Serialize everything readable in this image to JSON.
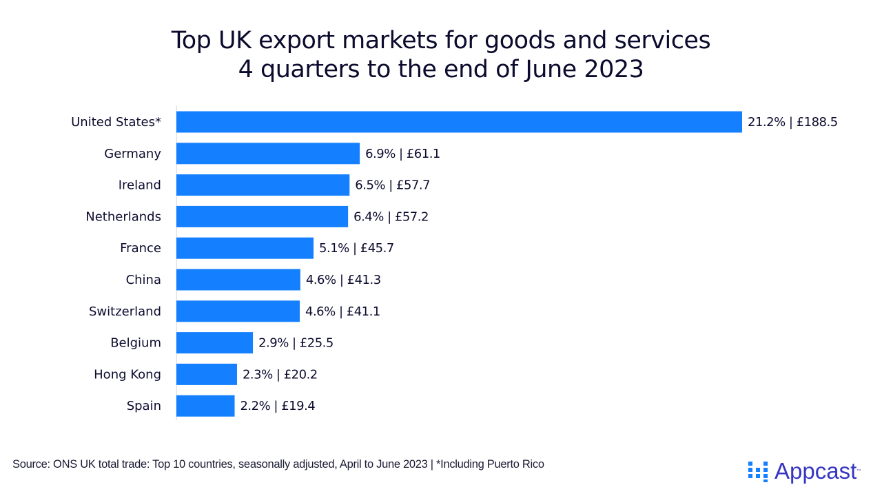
{
  "title": [
    "Top UK export markets for goods and services",
    "4 quarters to the end of June 2023"
  ],
  "footer": "Source: ONS UK total trade: Top 10 countries, seasonally adjusted, April to June 2023 | *Including Puerto Rico",
  "logo": {
    "text": "Appcast",
    "trademark": "™",
    "icon": "dot-grid-icon",
    "color": "#3535c2"
  },
  "colors": {
    "bar": "#1480ff",
    "text": "#0b0b2e"
  },
  "chart_data": {
    "type": "bar",
    "orientation": "horizontal",
    "title": "Top UK export markets for goods and services 4 quarters to the end of June 2023",
    "categories": [
      "United States*",
      "Germany",
      "Ireland",
      "Netherlands",
      "France",
      "China",
      "Switzerland",
      "Belgium",
      "Hong Kong",
      "Spain"
    ],
    "values": [
      188.5,
      61.1,
      57.7,
      57.2,
      45.7,
      41.3,
      41.1,
      25.5,
      20.2,
      19.4
    ],
    "shares": [
      "21.2%",
      "6.9%",
      "6.5%",
      "6.4%",
      "5.1%",
      "4.6%",
      "4.6%",
      "2.9%",
      "2.3%",
      "2.2%"
    ],
    "labels": [
      "21.2% | £188.5",
      "6.9% | £61.1",
      "6.5% | £57.7",
      "6.4% | £57.2",
      "5.1% | £45.7",
      "4.6% | £41.3",
      "4.6% | £41.1",
      "2.9% | £25.5",
      "2.3% | £20.2",
      "2.2% | £19.4"
    ],
    "xlim": [
      0,
      188.5
    ],
    "grid": false,
    "legend": "none"
  }
}
